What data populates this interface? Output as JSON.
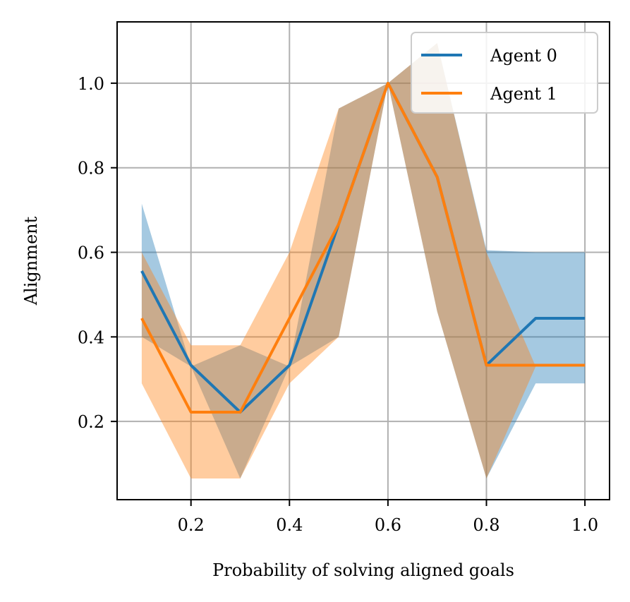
{
  "chart_data": {
    "type": "line",
    "xlabel": "Probability of solving aligned goals",
    "ylabel": "Alignment",
    "x": [
      0.1,
      0.2,
      0.3,
      0.4,
      0.5,
      0.6,
      0.7,
      0.8,
      0.9,
      1.0
    ],
    "xlim": [
      0.05,
      1.05
    ],
    "ylim": [
      0.015,
      1.145
    ],
    "xticks": [
      "0.2",
      "0.4",
      "0.6",
      "0.8",
      "1.0"
    ],
    "yticks": [
      "0.2",
      "0.4",
      "0.6",
      "0.8",
      "1.0"
    ],
    "grid": true,
    "legend_position": "top-right",
    "series": [
      {
        "name": "Agent 0",
        "color": "#1f77b4",
        "band_color": "#1f77b4",
        "values": [
          0.556,
          0.333,
          0.222,
          0.333,
          0.667,
          1.0,
          0.778,
          0.333,
          0.444,
          0.444
        ],
        "lower": [
          0.4,
          0.33,
          0.065,
          0.33,
          0.4,
          1.0,
          0.46,
          0.065,
          0.29,
          0.29
        ],
        "upper": [
          0.715,
          0.33,
          0.38,
          0.33,
          0.94,
          1.0,
          1.095,
          0.605,
          0.6,
          0.6
        ]
      },
      {
        "name": "Agent 1",
        "color": "#ff7f0e",
        "band_color": "#ff7f0e",
        "values": [
          0.444,
          0.222,
          0.222,
          0.444,
          0.667,
          1.0,
          0.778,
          0.333,
          0.333,
          0.333
        ],
        "lower": [
          0.29,
          0.065,
          0.065,
          0.29,
          0.4,
          1.0,
          0.46,
          0.065,
          0.33,
          0.33
        ],
        "upper": [
          0.6,
          0.38,
          0.38,
          0.6,
          0.94,
          1.0,
          1.095,
          0.6,
          0.33,
          0.33
        ]
      }
    ]
  }
}
